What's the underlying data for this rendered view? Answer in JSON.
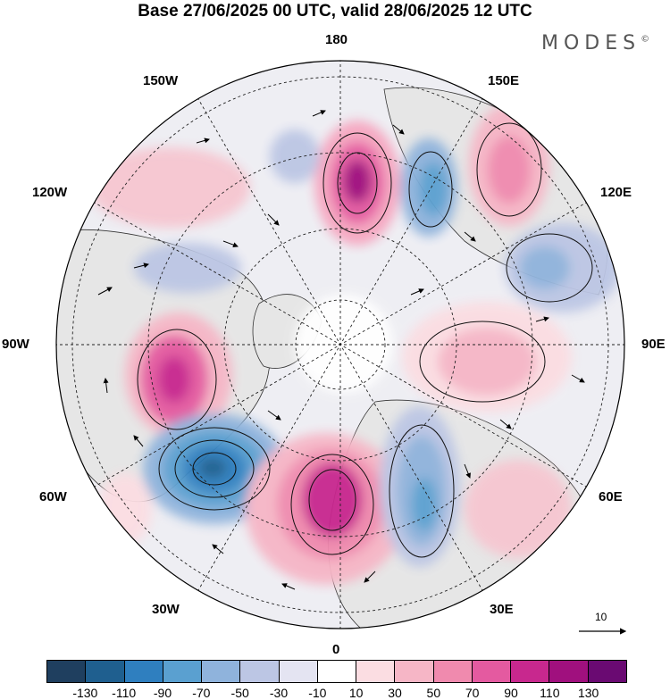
{
  "title": "Base 27/06/2025 00 UTC, valid 28/06/2025 12 UTC",
  "brand": "MODES",
  "brand_mark": "©",
  "longitude_labels": {
    "top": "180",
    "top_left": "150W",
    "top_right": "150E",
    "upper_left": "120W",
    "upper_right": "120E",
    "left": "90W",
    "right": "90E",
    "lower_left": "60W",
    "lower_right": "60E",
    "bottom_left": "30W",
    "bottom_right": "30E",
    "bottom": "0"
  },
  "reference_vector": {
    "label": "10"
  },
  "colorbar": {
    "colors": [
      "#1f3f5f",
      "#1f5f8f",
      "#2f7fbf",
      "#5aa0d0",
      "#8fb3dc",
      "#bcc6e4",
      "#e4e4f2",
      "#ffffff",
      "#fbdde2",
      "#f6b6c6",
      "#f08aae",
      "#e45aa0",
      "#c8288e",
      "#a0107e",
      "#6a0a72"
    ],
    "ticks": [
      "-130",
      "-110",
      "-90",
      "-70",
      "-50",
      "-30",
      "-10",
      "10",
      "30",
      "50",
      "70",
      "90",
      "110",
      "130"
    ]
  }
}
